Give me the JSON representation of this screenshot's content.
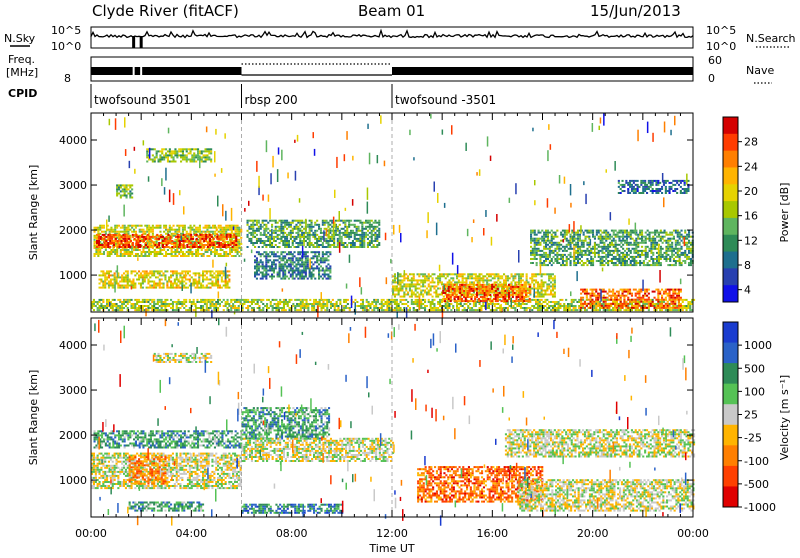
{
  "header": {
    "station": "Clyde River (fitACF)",
    "beam": "Beam 01",
    "date": "15/Jun/2013"
  },
  "top_strip": {
    "left_label": "N.Sky",
    "left_ticks": [
      "10^5",
      "10^0"
    ],
    "right_label": "N.Search",
    "right_ticks": [
      "10^5",
      "10^0"
    ]
  },
  "freq_strip": {
    "left_label_line1": "Freq.",
    "left_label_line2": "[MHz]",
    "left_tick": "8",
    "right_label": "Nave",
    "right_ticks": [
      "60",
      "0"
    ],
    "cpid_label": "CPID"
  },
  "cpid_segments": [
    {
      "label": "twofsound 3501",
      "start_hour": 0
    },
    {
      "label": "rbsp 200",
      "start_hour": 6
    },
    {
      "label": "twofsound -3501",
      "start_hour": 12
    }
  ],
  "chart_data": [
    {
      "type": "heatmap",
      "panel": "power",
      "ylabel": "Slant Range [km]",
      "y_ticks": [
        1000,
        2000,
        3000,
        4000
      ],
      "ylim": [
        180,
        4600
      ],
      "xlim": [
        0,
        24
      ],
      "colorbar_label": "Power [dB]",
      "colorbar_ticks": [
        "28",
        "24",
        "20",
        "16",
        "12",
        "8",
        "4"
      ],
      "colorbar_colors": [
        "#d40000",
        "#ff3c00",
        "#ff7f00",
        "#ffb400",
        "#e6d200",
        "#a8c800",
        "#5fb55f",
        "#2e8b57",
        "#1e6f8e",
        "#2840b0",
        "#1010e8"
      ],
      "regions": [
        {
          "t0": 0.1,
          "t1": 6.0,
          "r0": 1400,
          "r1": 2100,
          "level": 0.55
        },
        {
          "t0": 0.2,
          "t1": 5.8,
          "r0": 1600,
          "r1": 1900,
          "level": 0.9
        },
        {
          "t0": 0.3,
          "t1": 5.5,
          "r0": 700,
          "r1": 1100,
          "level": 0.6
        },
        {
          "t0": 0.0,
          "t1": 24.0,
          "r0": 200,
          "r1": 450,
          "level": 0.5
        },
        {
          "t0": 2.2,
          "t1": 4.8,
          "r0": 3500,
          "r1": 3800,
          "level": 0.45
        },
        {
          "t0": 1.0,
          "t1": 1.6,
          "r0": 2700,
          "r1": 3000,
          "level": 0.4
        },
        {
          "t0": 6.2,
          "t1": 11.5,
          "r0": 1600,
          "r1": 2200,
          "level": 0.35
        },
        {
          "t0": 6.5,
          "t1": 9.5,
          "r0": 900,
          "r1": 1500,
          "level": 0.25
        },
        {
          "t0": 12.0,
          "t1": 18.5,
          "r0": 500,
          "r1": 1000,
          "level": 0.55
        },
        {
          "t0": 14.0,
          "t1": 17.5,
          "r0": 400,
          "r1": 800,
          "level": 0.85
        },
        {
          "t0": 17.5,
          "t1": 24.0,
          "r0": 1200,
          "r1": 2000,
          "level": 0.35
        },
        {
          "t0": 19.5,
          "t1": 23.5,
          "r0": 250,
          "r1": 700,
          "level": 0.85
        },
        {
          "t0": 21.0,
          "t1": 23.8,
          "r0": 2800,
          "r1": 3100,
          "level": 0.2
        }
      ]
    },
    {
      "type": "heatmap",
      "panel": "velocity",
      "ylabel": "Slant Range [km]",
      "y_ticks": [
        1000,
        2000,
        3000,
        4000
      ],
      "ylim": [
        180,
        4600
      ],
      "xlim": [
        0,
        24
      ],
      "x_ticks": [
        "00:00",
        "04:00",
        "08:00",
        "12:00",
        "16:00",
        "20:00",
        "00:00"
      ],
      "xlabel": "Time UT",
      "colorbar_label": "Velocity [m s⁻¹]",
      "colorbar_ticks": [
        "1000",
        "500",
        "100",
        "25",
        "-25",
        "-100",
        "-500",
        "-1000"
      ],
      "colorbar_colors": [
        "#1a3ccf",
        "#2a62c8",
        "#2e8b57",
        "#55c255",
        "#c9c9c9",
        "#ffb400",
        "#ff7f00",
        "#ff4000",
        "#e00000"
      ],
      "regions": [
        {
          "t0": 0.1,
          "t1": 6.0,
          "r0": 1700,
          "r1": 2100,
          "level": 0.7
        },
        {
          "t0": 0.0,
          "t1": 6.0,
          "r0": 800,
          "r1": 1600,
          "level": 0.5
        },
        {
          "t0": 1.5,
          "t1": 3.0,
          "r0": 900,
          "r1": 1500,
          "level": 0.25
        },
        {
          "t0": 1.5,
          "t1": 4.5,
          "r0": 300,
          "r1": 500,
          "level": 0.7
        },
        {
          "t0": 6.0,
          "t1": 9.5,
          "r0": 1900,
          "r1": 2600,
          "level": 0.7
        },
        {
          "t0": 6.0,
          "t1": 10.0,
          "r0": 250,
          "r1": 450,
          "level": 0.8
        },
        {
          "t0": 2.5,
          "t1": 4.8,
          "r0": 3600,
          "r1": 3800,
          "level": 0.5
        },
        {
          "t0": 6.0,
          "t1": 12.0,
          "r0": 1400,
          "r1": 1900,
          "level": 0.5
        },
        {
          "t0": 13.0,
          "t1": 18.0,
          "r0": 500,
          "r1": 1300,
          "level": 0.2
        },
        {
          "t0": 16.5,
          "t1": 24.0,
          "r0": 1500,
          "r1": 2100,
          "level": 0.5
        },
        {
          "t0": 17.0,
          "t1": 24.0,
          "r0": 300,
          "r1": 1000,
          "level": 0.5
        }
      ]
    }
  ]
}
